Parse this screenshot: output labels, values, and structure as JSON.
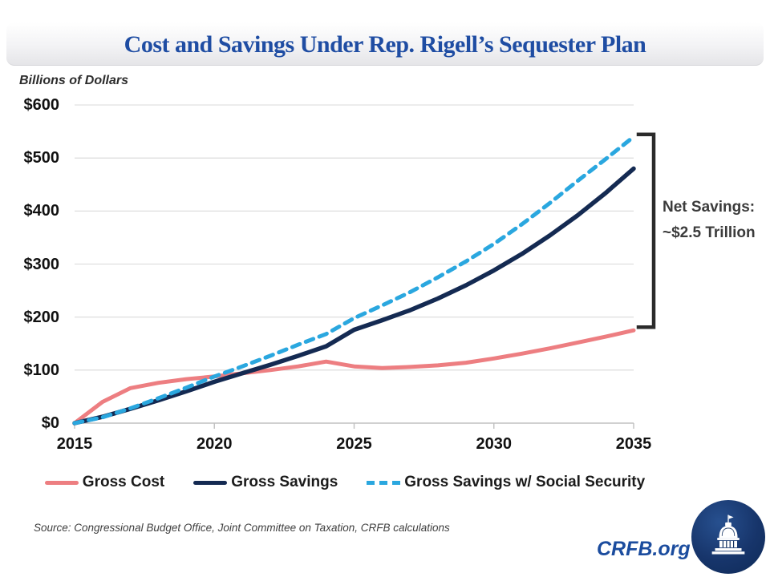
{
  "title": "Cost and Savings Under Rep. Rigell’s Sequester Plan",
  "y_axis_label": "Billions of Dollars",
  "annotation": {
    "line1": "Net Savings:",
    "line2": "~$2.5 Trillion"
  },
  "source": "Source: Congressional Budget Office, Joint Committee on Taxation, CRFB calculations",
  "footer": {
    "brand": "CRFB.org",
    "logo": "capitol-dome-logo"
  },
  "colors": {
    "title_blue": "#1f4da3",
    "brand_blue": "#1b4c9e",
    "gross_cost": "#ed7e81",
    "gross_savings": "#142a52",
    "gross_savings_ss": "#2aa7df",
    "gridline": "#d9d9d9",
    "axis": "#c0c0c0",
    "bracket": "#2b2b2b"
  },
  "chart_data": {
    "type": "line",
    "title": "Cost and Savings Under Rep. Rigell’s Sequester Plan",
    "ylabel": "Billions of Dollars",
    "xlabel": "",
    "grid": "horizontal",
    "legend_position": "bottom",
    "ylim": [
      0,
      600
    ],
    "x": [
      2015,
      2016,
      2017,
      2018,
      2019,
      2020,
      2021,
      2022,
      2023,
      2024,
      2025,
      2026,
      2027,
      2028,
      2029,
      2030,
      2031,
      2032,
      2033,
      2034,
      2035
    ],
    "x_ticks": [
      2015,
      2020,
      2025,
      2030,
      2035
    ],
    "y_ticks": [
      {
        "label": "$0",
        "value": 0
      },
      {
        "label": "$100",
        "value": 100
      },
      {
        "label": "$200",
        "value": 200
      },
      {
        "label": "$300",
        "value": 300
      },
      {
        "label": "$400",
        "value": 400
      },
      {
        "label": "$500",
        "value": 500
      },
      {
        "label": "$600",
        "value": 600
      }
    ],
    "series": [
      {
        "name": "Gross Cost",
        "color": "#ed7e81",
        "style": "solid",
        "values": [
          0,
          40,
          66,
          76,
          83,
          88,
          94,
          100,
          107,
          116,
          107,
          104,
          106,
          109,
          114,
          122,
          131,
          141,
          152,
          163,
          175
        ]
      },
      {
        "name": "Gross Savings",
        "color": "#142a52",
        "style": "solid",
        "values": [
          0,
          12,
          27,
          43,
          60,
          78,
          94,
          110,
          127,
          145,
          176,
          194,
          213,
          235,
          260,
          288,
          319,
          354,
          392,
          434,
          480
        ]
      },
      {
        "name": "Gross Savings w/ Social Security",
        "color": "#2aa7df",
        "style": "dashed",
        "values": [
          0,
          11,
          28,
          47,
          67,
          88,
          107,
          127,
          148,
          168,
          198,
          222,
          247,
          275,
          305,
          338,
          375,
          415,
          457,
          498,
          540
        ]
      }
    ],
    "bracket_annotation": "Net Savings: ~$2.5 Trillion"
  }
}
